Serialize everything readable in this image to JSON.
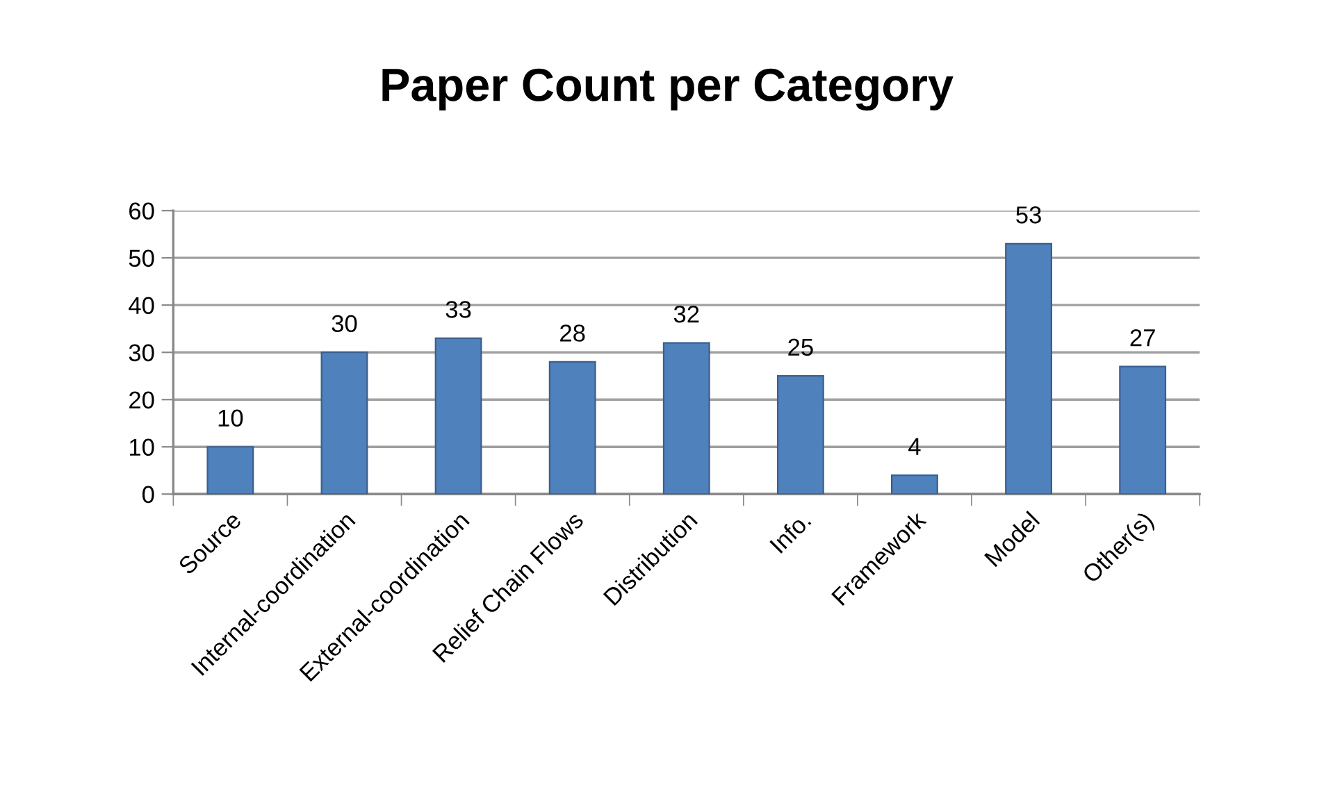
{
  "chart_data": {
    "type": "bar",
    "title": "Paper Count per Category",
    "categories": [
      "Source",
      "Internal-coordination",
      "External-coordination",
      "Relief Chain Flows",
      "Distribution",
      "Info.",
      "Framework",
      "Model",
      "Other(s)"
    ],
    "values": [
      10,
      30,
      33,
      28,
      32,
      25,
      4,
      53,
      27
    ],
    "color": "#4f81bd",
    "ylim": [
      0,
      60
    ],
    "yticks": [
      0,
      10,
      20,
      30,
      40,
      50,
      60
    ],
    "grid": "y",
    "data_labels": true
  }
}
